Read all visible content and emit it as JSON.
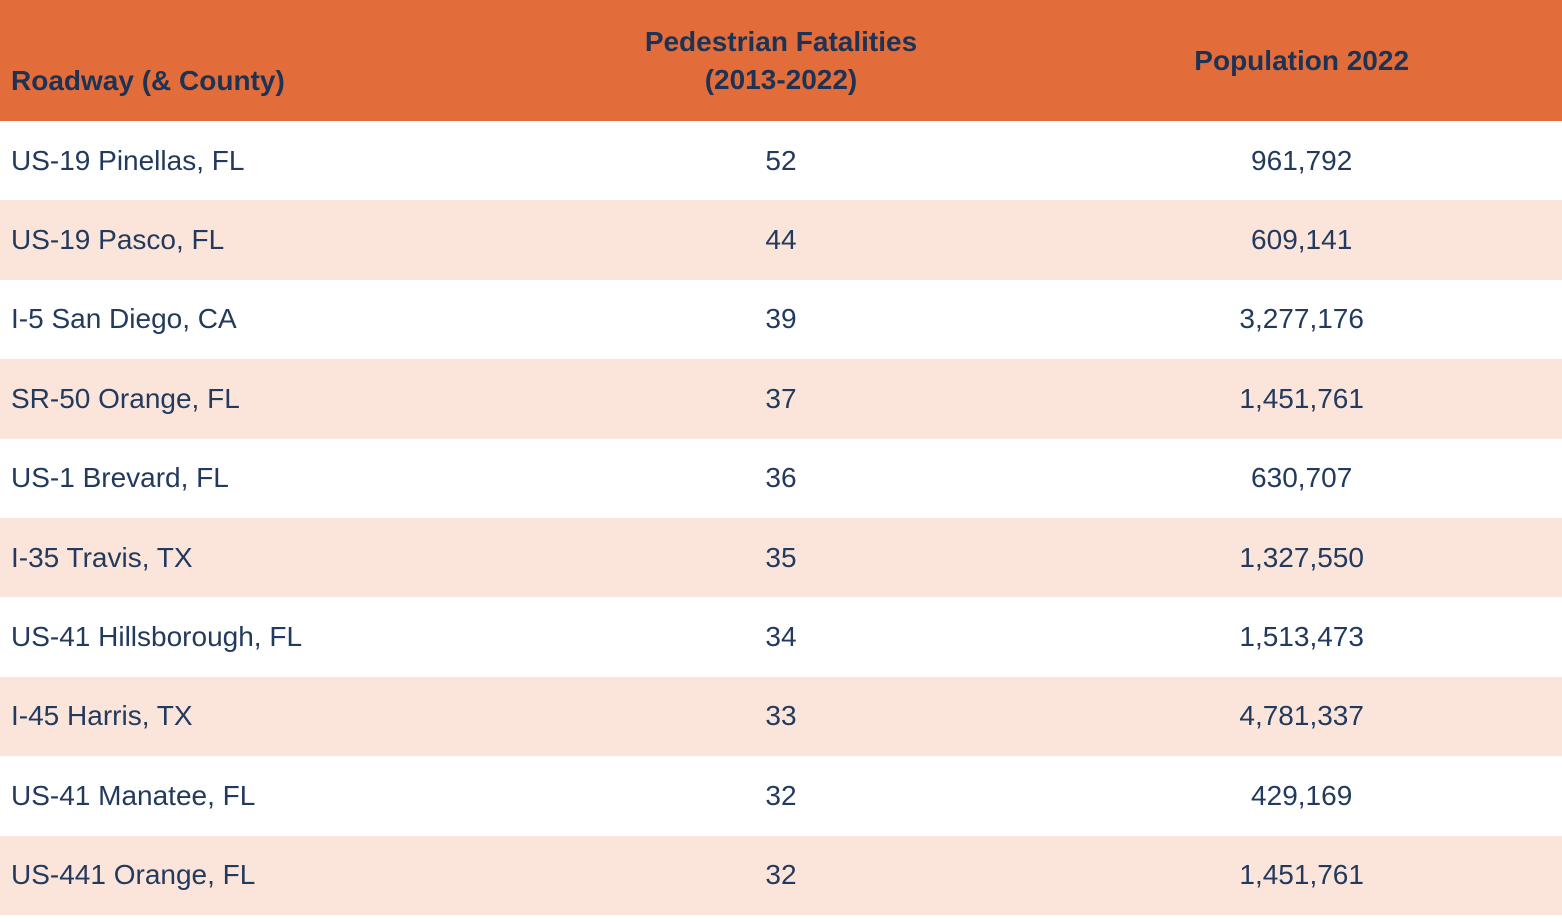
{
  "header": {
    "roadway_label": "Roadway (& County)",
    "fatalities_label_line1": "Pedestrian Fatalities",
    "fatalities_label_line2": "(2013-2022)",
    "population_label": "Population 2022"
  },
  "rows": [
    {
      "roadway": "US-19 Pinellas, FL",
      "fatalities": "52",
      "population": "961,792"
    },
    {
      "roadway": "US-19 Pasco, FL",
      "fatalities": "44",
      "population": "609,141"
    },
    {
      "roadway": "I-5 San Diego, CA",
      "fatalities": "39",
      "population": "3,277,176"
    },
    {
      "roadway": "SR-50 Orange, FL",
      "fatalities": "37",
      "population": "1,451,761"
    },
    {
      "roadway": "US-1 Brevard, FL",
      "fatalities": "36",
      "population": "630,707"
    },
    {
      "roadway": "I-35 Travis, TX",
      "fatalities": "35",
      "population": "1,327,550"
    },
    {
      "roadway": "US-41 Hillsborough, FL",
      "fatalities": "34",
      "population": "1,513,473"
    },
    {
      "roadway": "I-45 Harris, TX",
      "fatalities": "33",
      "population": "4,781,337"
    },
    {
      "roadway": "US-41 Manatee, FL",
      "fatalities": "32",
      "population": "429,169"
    },
    {
      "roadway": "US-441 Orange, FL",
      "fatalities": "32",
      "population": "1,451,761"
    }
  ],
  "colors": {
    "header_bg": "#E26D3B",
    "row_alt_bg": "#FBE5DB",
    "row_bg": "#FFFFFF",
    "text_color": "#223A5D",
    "header_text_color": "#1E3354"
  },
  "chart_data": {
    "type": "table",
    "columns": [
      "Roadway (& County)",
      "Pedestrian Fatalities (2013-2022)",
      "Population 2022"
    ],
    "rows": [
      [
        "US-19 Pinellas, FL",
        52,
        961792
      ],
      [
        "US-19 Pasco, FL",
        44,
        609141
      ],
      [
        "I-5 San Diego, CA",
        39,
        3277176
      ],
      [
        "SR-50 Orange, FL",
        37,
        1451761
      ],
      [
        "US-1 Brevard, FL",
        36,
        630707
      ],
      [
        "I-35 Travis, TX",
        35,
        1327550
      ],
      [
        "US-41 Hillsborough, FL",
        34,
        1513473
      ],
      [
        "I-45 Harris, TX",
        33,
        4781337
      ],
      [
        "US-41 Manatee, FL",
        32,
        429169
      ],
      [
        "US-441 Orange, FL",
        32,
        1451761
      ]
    ],
    "layout": {
      "header_fill": "#E26D3B",
      "banding": "alternating white / #FBE5DB starting white",
      "column_alignment": [
        "left",
        "center",
        "center"
      ]
    }
  }
}
